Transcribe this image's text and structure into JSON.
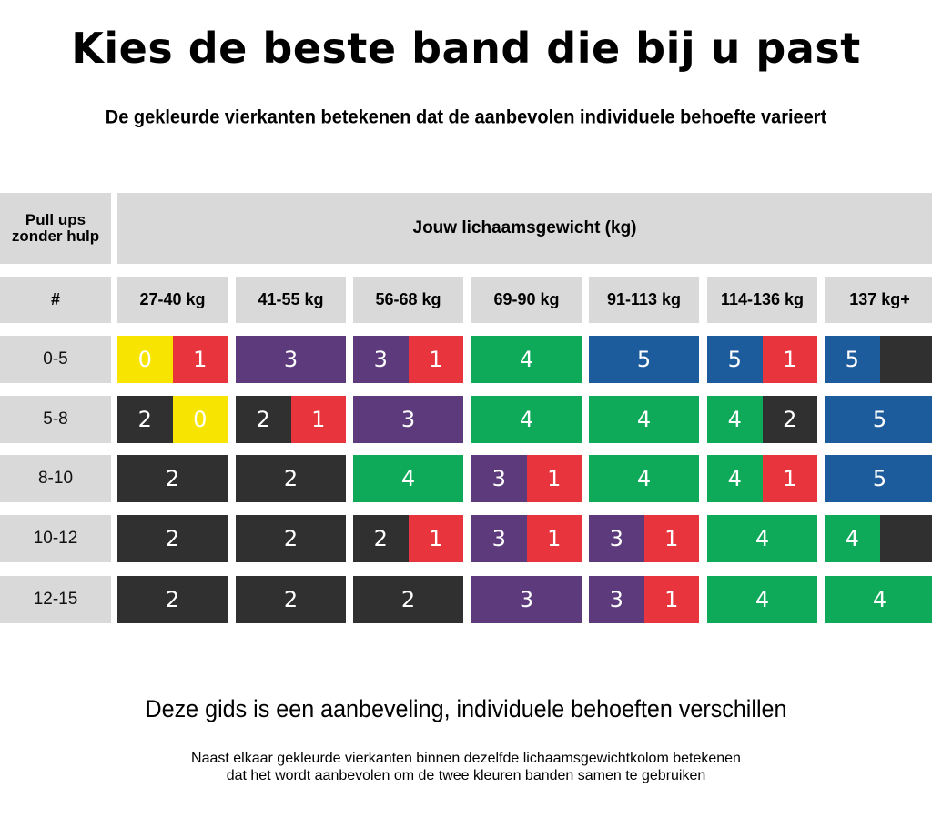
{
  "title": "Kies de beste band die bij u past",
  "subtitle": "De gekleurde vierkanten betekenen dat de aanbevolen individuele behoefte varieert",
  "table": {
    "corner_header": "Pull ups\nzonder hulp",
    "weight_header": "Jouw lichaamsgewicht (kg)",
    "row_header": "#",
    "columns": [
      "27-40 kg",
      "41-55 kg",
      "56-68 kg",
      "69-90 kg",
      "91-113 kg",
      "114-136 kg",
      "137 kg+"
    ],
    "rows": [
      {
        "label": "0-5",
        "cells": [
          [
            {
              "n": "0",
              "c": "yellow"
            },
            {
              "n": "1",
              "c": "red"
            }
          ],
          [
            {
              "n": "3",
              "c": "purple"
            }
          ],
          [
            {
              "n": "3",
              "c": "purple"
            },
            {
              "n": "1",
              "c": "red"
            }
          ],
          [
            {
              "n": "4",
              "c": "green"
            }
          ],
          [
            {
              "n": "5",
              "c": "blue"
            }
          ],
          [
            {
              "n": "5",
              "c": "blue"
            },
            {
              "n": "1",
              "c": "red"
            }
          ],
          [
            {
              "n": "5",
              "c": "blue"
            },
            {
              "n": "",
              "c": "black"
            }
          ]
        ]
      },
      {
        "label": "5-8",
        "cells": [
          [
            {
              "n": "2",
              "c": "black"
            },
            {
              "n": "0",
              "c": "yellow"
            }
          ],
          [
            {
              "n": "2",
              "c": "black"
            },
            {
              "n": "1",
              "c": "red"
            }
          ],
          [
            {
              "n": "3",
              "c": "purple"
            }
          ],
          [
            {
              "n": "4",
              "c": "green"
            }
          ],
          [
            {
              "n": "4",
              "c": "green"
            }
          ],
          [
            {
              "n": "4",
              "c": "green"
            },
            {
              "n": "2",
              "c": "black"
            }
          ],
          [
            {
              "n": "5",
              "c": "blue"
            }
          ]
        ]
      },
      {
        "label": "8-10",
        "cells": [
          [
            {
              "n": "2",
              "c": "black"
            }
          ],
          [
            {
              "n": "2",
              "c": "black"
            }
          ],
          [
            {
              "n": "4",
              "c": "green"
            }
          ],
          [
            {
              "n": "3",
              "c": "purple"
            },
            {
              "n": "1",
              "c": "red"
            }
          ],
          [
            {
              "n": "4",
              "c": "green"
            }
          ],
          [
            {
              "n": "4",
              "c": "green"
            },
            {
              "n": "1",
              "c": "red"
            }
          ],
          [
            {
              "n": "5",
              "c": "blue"
            }
          ]
        ]
      },
      {
        "label": "10-12",
        "cells": [
          [
            {
              "n": "2",
              "c": "black"
            }
          ],
          [
            {
              "n": "2",
              "c": "black"
            }
          ],
          [
            {
              "n": "2",
              "c": "black"
            },
            {
              "n": "1",
              "c": "red"
            }
          ],
          [
            {
              "n": "3",
              "c": "purple"
            },
            {
              "n": "1",
              "c": "red"
            }
          ],
          [
            {
              "n": "3",
              "c": "purple"
            },
            {
              "n": "1",
              "c": "red"
            }
          ],
          [
            {
              "n": "4",
              "c": "green"
            }
          ],
          [
            {
              "n": "4",
              "c": "green"
            },
            {
              "n": "",
              "c": "black"
            }
          ]
        ]
      },
      {
        "label": "12-15",
        "cells": [
          [
            {
              "n": "2",
              "c": "black"
            }
          ],
          [
            {
              "n": "2",
              "c": "black"
            }
          ],
          [
            {
              "n": "2",
              "c": "black"
            }
          ],
          [
            {
              "n": "3",
              "c": "purple"
            }
          ],
          [
            {
              "n": "3",
              "c": "purple"
            },
            {
              "n": "1",
              "c": "red"
            }
          ],
          [
            {
              "n": "4",
              "c": "green"
            }
          ],
          [
            {
              "n": "4",
              "c": "green"
            }
          ]
        ]
      }
    ]
  },
  "colors": {
    "yellow": "#f7e400",
    "red": "#e8343d",
    "purple": "#5c3a7c",
    "green": "#0fa95a",
    "blue": "#1c5b9c",
    "black": "#303030",
    "header_gray": "#d9d9d9"
  },
  "footer": {
    "main": "Deze gids is een aanbeveling, individuele behoeften verschillen",
    "note": "Naast elkaar gekleurde vierkanten binnen dezelfde lichaamsgewichtkolom betekenen\ndat het wordt aanbevolen om de twee kleuren banden samen te gebruiken"
  }
}
